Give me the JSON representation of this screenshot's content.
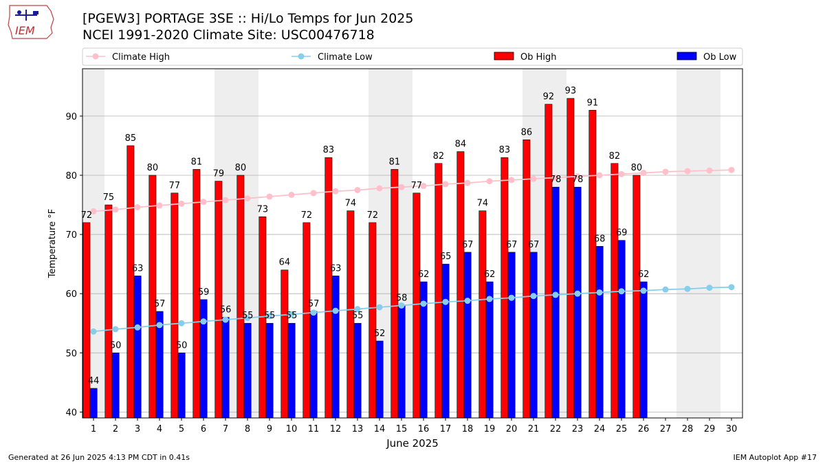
{
  "logo_text": "IEM",
  "title_line1": "[PGEW3] PORTAGE 3SE :: Hi/Lo Temps for Jun 2025",
  "title_line2": "NCEI 1991-2020 Climate Site: USC00476718",
  "footer_left": "Generated at 26 Jun 2025 4:13 PM CDT in 0.41s",
  "footer_right": "IEM Autoplot App #17",
  "colors": {
    "ob_high": "#ff0000",
    "ob_low": "#0000ff",
    "climate_high": "#ffc0cb",
    "climate_low": "#87ceeb",
    "weekend_shade": "#eeeeee",
    "grid": "#b0b0b0"
  },
  "chart_data": {
    "type": "bar",
    "xlabel": "June 2025",
    "ylabel": "Temperature °F",
    "ylim": [
      39,
      98
    ],
    "yticks": [
      40,
      50,
      60,
      70,
      80,
      90
    ],
    "grid": "horizontal",
    "legend_position": "top",
    "categories": [
      "1",
      "2",
      "3",
      "4",
      "5",
      "6",
      "7",
      "8",
      "9",
      "10",
      "11",
      "12",
      "13",
      "14",
      "15",
      "16",
      "17",
      "18",
      "19",
      "20",
      "21",
      "22",
      "23",
      "24",
      "25",
      "26",
      "27",
      "28",
      "29",
      "30"
    ],
    "weekend_shaded_days": [
      1,
      7,
      8,
      14,
      15,
      21,
      22,
      28,
      29
    ],
    "series": [
      {
        "name": "Ob High",
        "kind": "bar",
        "values": [
          72,
          75,
          85,
          80,
          77,
          81,
          79,
          80,
          73,
          64,
          72,
          83,
          74,
          72,
          81,
          77,
          82,
          84,
          74,
          83,
          86,
          92,
          93,
          91,
          82,
          80,
          null,
          null,
          null,
          null
        ]
      },
      {
        "name": "Ob Low",
        "kind": "bar",
        "values": [
          44,
          50,
          63,
          57,
          50,
          59,
          56,
          55,
          55,
          55,
          57,
          63,
          55,
          52,
          58,
          62,
          65,
          67,
          62,
          67,
          67,
          78,
          78,
          68,
          69,
          62,
          null,
          null,
          null,
          null
        ]
      },
      {
        "name": "Climate High",
        "kind": "line",
        "values": [
          73.9,
          74.2,
          74.6,
          74.9,
          75.2,
          75.5,
          75.8,
          76.1,
          76.4,
          76.7,
          77.0,
          77.3,
          77.5,
          77.8,
          78.0,
          78.2,
          78.5,
          78.7,
          79.0,
          79.2,
          79.4,
          79.6,
          79.8,
          80.0,
          80.2,
          80.4,
          80.6,
          80.7,
          80.8,
          80.9
        ]
      },
      {
        "name": "Climate Low",
        "kind": "line",
        "values": [
          53.6,
          54.0,
          54.3,
          54.7,
          55.0,
          55.3,
          55.6,
          55.9,
          56.2,
          56.5,
          56.8,
          57.1,
          57.4,
          57.7,
          58.0,
          58.3,
          58.6,
          58.8,
          59.1,
          59.3,
          59.6,
          59.8,
          60.0,
          60.2,
          60.4,
          60.5,
          60.7,
          60.8,
          61.0,
          61.1
        ]
      }
    ]
  }
}
